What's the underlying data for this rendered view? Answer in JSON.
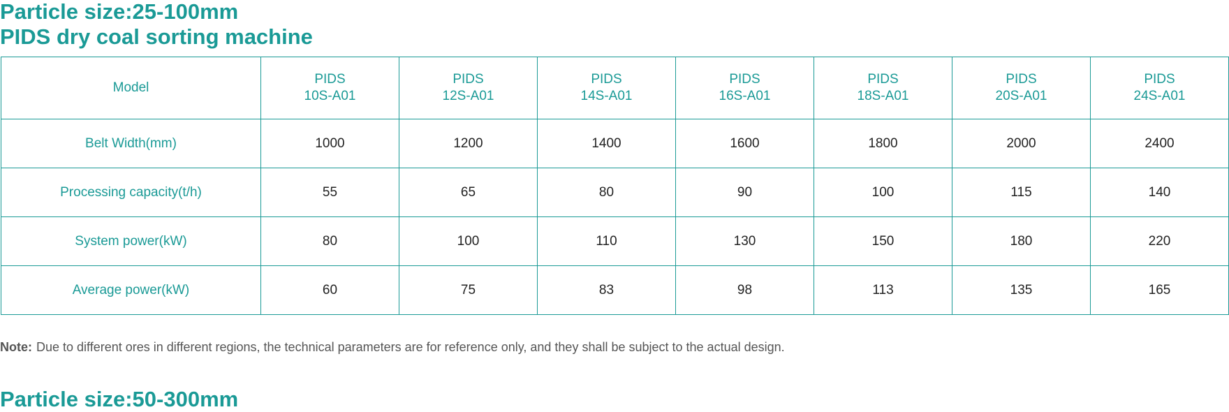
{
  "section1": {
    "title_line1": "Particle size:25-100mm",
    "title_line2": "PIDS dry coal sorting machine"
  },
  "table": {
    "header_label": "Model",
    "models": [
      {
        "line1": "PIDS",
        "line2": "10S-A01"
      },
      {
        "line1": "PIDS",
        "line2": "12S-A01"
      },
      {
        "line1": "PIDS",
        "line2": "14S-A01"
      },
      {
        "line1": "PIDS",
        "line2": "16S-A01"
      },
      {
        "line1": "PIDS",
        "line2": "18S-A01"
      },
      {
        "line1": "PIDS",
        "line2": "20S-A01"
      },
      {
        "line1": "PIDS",
        "line2": "24S-A01"
      }
    ],
    "rows": [
      {
        "label": "Belt Width(mm)",
        "values": [
          "1000",
          "1200",
          "1400",
          "1600",
          "1800",
          "2000",
          "2400"
        ]
      },
      {
        "label": "Processing capacity(t/h)",
        "values": [
          "55",
          "65",
          "80",
          "90",
          "100",
          "115",
          "140"
        ]
      },
      {
        "label": "System power(kW)",
        "values": [
          "80",
          "100",
          "110",
          "130",
          "150",
          "180",
          "220"
        ]
      },
      {
        "label": "Average power(kW)",
        "values": [
          "60",
          "75",
          "83",
          "98",
          "113",
          "135",
          "165"
        ]
      }
    ]
  },
  "note": {
    "label": "Note:",
    "text": "Due to different ores in different regions, the technical parameters are for reference only, and they shall be subject to the actual design."
  },
  "section2": {
    "title_line1": "Particle size:50-300mm"
  },
  "colors": {
    "accent": "#1a9a96",
    "value_text": "#222222",
    "note_text": "#555555"
  }
}
